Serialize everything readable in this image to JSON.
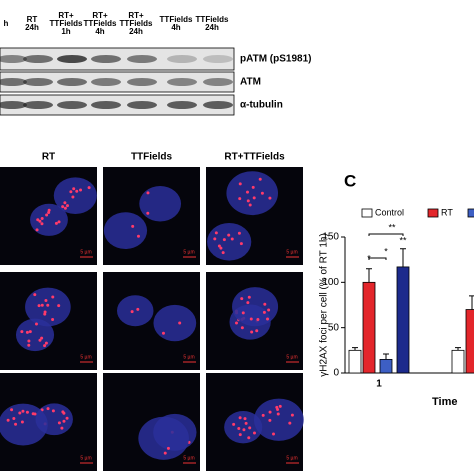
{
  "blot": {
    "lanes": [
      "h",
      "RT 24h",
      "RT+ TTFields 1h",
      "RT+ TTFields 4h",
      "RT+ TTFields 24h",
      "TTFields 4h",
      "TTFields 24h"
    ],
    "rows": [
      "pATM (pS1981)",
      "ATM",
      "α-tubulin"
    ]
  },
  "micrographs": {
    "columns": [
      "RT",
      "TTFields",
      "RT+TTFields"
    ],
    "scale_bar": "5 µm"
  },
  "panel_label": "C",
  "chart_data": {
    "type": "bar",
    "ylabel": "γH2AX foci per cell (% of RT 1h)",
    "xlabel": "Time",
    "categories": [
      "1",
      null
    ],
    "series": [
      {
        "name": "Control",
        "color": "#ffffff",
        "values": [
          25,
          25
        ],
        "errors": [
          3,
          3
        ]
      },
      {
        "name": "RT",
        "color": "#e3262b",
        "values": [
          100,
          70
        ],
        "errors": [
          15,
          15
        ]
      },
      {
        "color": "#3d5fc4",
        "values": [
          15,
          null
        ],
        "errors": [
          6,
          null
        ]
      },
      {
        "color": "#1c2a8c",
        "values": [
          117,
          null
        ],
        "errors": [
          20,
          null
        ]
      }
    ],
    "ylim": [
      0,
      150
    ],
    "yticks": [
      0,
      50,
      100,
      150
    ],
    "annotations": [
      "*",
      "**",
      "*",
      "**"
    ]
  }
}
